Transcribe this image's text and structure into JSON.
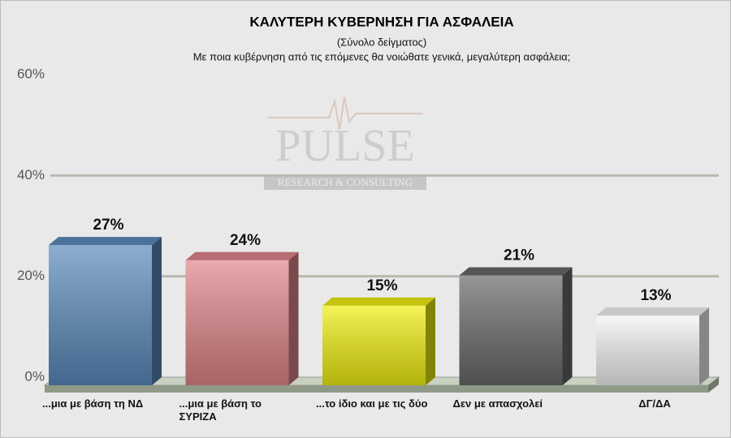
{
  "chart_data": {
    "type": "bar",
    "title": "ΚΑΛΥΤΕΡΗ ΚΥΒΕΡΝΗΣΗ ΓΙΑ ΑΣΦΑΛΕΙΑ",
    "subtitle": "(Σύνολο δείγματος)",
    "question": "Με ποια κυβέρνηση από τις επόμενες θα νοιώθατε γενικά, μεγαλύτερη ασφάλεια;",
    "watermark": "PULSE",
    "watermark_subtitle": "RESEARCH & CONSULTING",
    "categories": [
      "...μια με βάση τη ΝΔ",
      "...μια με βάση το ΣΥΡΙΖΑ",
      "...το ίδιο και με τις δύο",
      "Δεν με απασχολεί",
      "ΔΓ/ΔΑ"
    ],
    "values": [
      27,
      24,
      15,
      21,
      13
    ],
    "value_labels": [
      "27%",
      "24%",
      "15%",
      "21%",
      "13%"
    ],
    "colors": [
      "#5b8bbd",
      "#e0868a",
      "#f0ef12",
      "#6a6a6a",
      "#f4f4f4"
    ],
    "ylim": [
      0,
      60
    ],
    "yticks": [
      {
        "value": 0,
        "label": "0%"
      },
      {
        "value": 20,
        "label": "20%"
      },
      {
        "value": 40,
        "label": "40%"
      },
      {
        "value": 60,
        "label": "60%"
      }
    ],
    "grid": true
  }
}
